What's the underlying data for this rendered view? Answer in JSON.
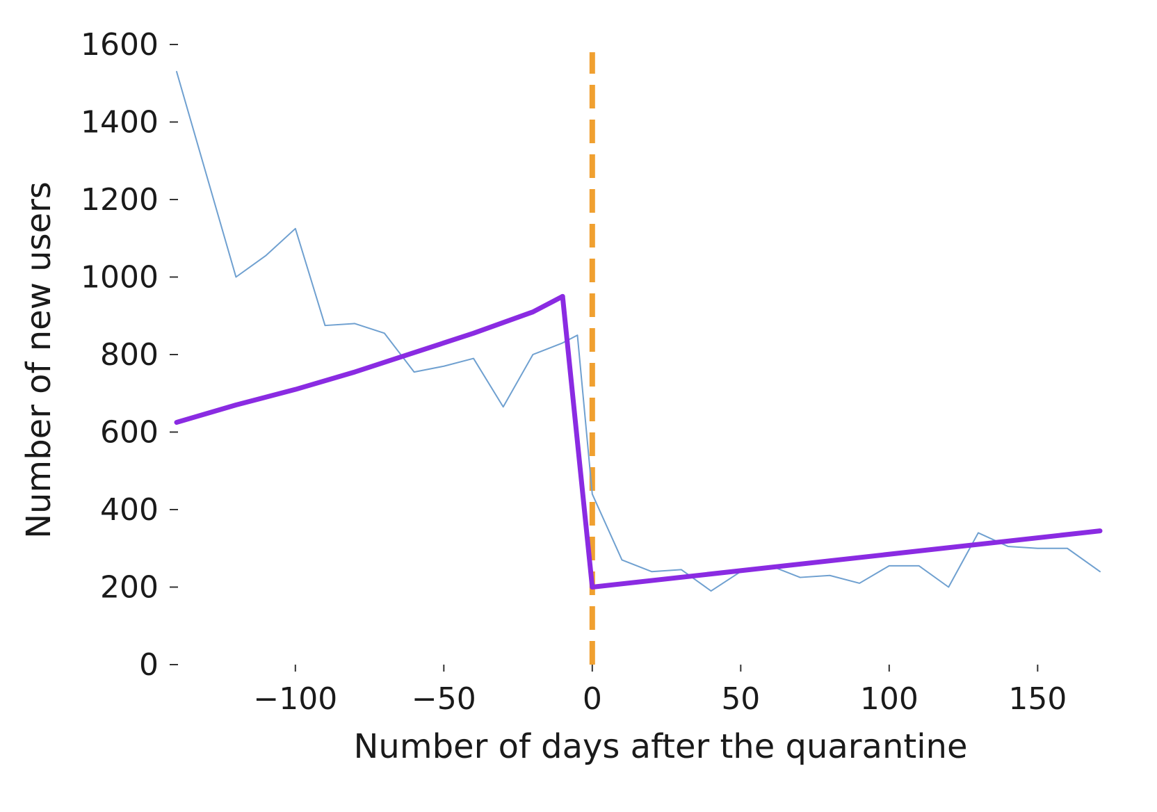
{
  "chart_data": {
    "type": "line",
    "title": "",
    "xlabel": "Number of days after the quarantine",
    "ylabel": "Number of new users",
    "xlim": [
      -140,
      171
    ],
    "ylim": [
      0,
      1600
    ],
    "x_ticks": [
      -100,
      -50,
      0,
      50,
      100,
      150
    ],
    "x_tick_labels": [
      "−100",
      "−50",
      "0",
      "50",
      "100",
      "150"
    ],
    "y_ticks": [
      0,
      200,
      400,
      600,
      800,
      1000,
      1200,
      1400,
      1600
    ],
    "y_tick_labels": [
      "0",
      "200",
      "400",
      "600",
      "800",
      "1000",
      "1200",
      "1400",
      "1600"
    ],
    "grid": false,
    "series": [
      {
        "role": "observed",
        "color": "#6fa0d0",
        "x": [
          -140,
          -120,
          -110,
          -100,
          -90,
          -80,
          -70,
          -60,
          -50,
          -40,
          -30,
          -20,
          -10,
          -5,
          0,
          10,
          20,
          30,
          40,
          50,
          60,
          70,
          80,
          90,
          100,
          110,
          120,
          130,
          140,
          150,
          160,
          171
        ],
        "y": [
          1530,
          1000,
          1055,
          1125,
          875,
          880,
          855,
          755,
          770,
          790,
          665,
          800,
          830,
          850,
          440,
          270,
          240,
          245,
          190,
          240,
          255,
          225,
          230,
          210,
          255,
          255,
          200,
          340,
          305,
          300,
          300,
          240
        ]
      },
      {
        "role": "fitted-pre",
        "color": "#8a2be2",
        "x": [
          -140,
          -120,
          -100,
          -80,
          -60,
          -40,
          -20,
          -10
        ],
        "y": [
          625,
          670,
          710,
          755,
          805,
          855,
          910,
          950
        ]
      },
      {
        "role": "fitted-drop",
        "color": "#8a2be2",
        "x": [
          -10,
          0
        ],
        "y": [
          950,
          200
        ]
      },
      {
        "role": "fitted-post",
        "color": "#8a2be2",
        "x": [
          0,
          171
        ],
        "y": [
          200,
          345
        ]
      }
    ],
    "reference_line": {
      "orientation": "vertical",
      "x": 0,
      "style": "dashed",
      "color": "#f0a030",
      "y_range": [
        0,
        1580
      ]
    }
  }
}
